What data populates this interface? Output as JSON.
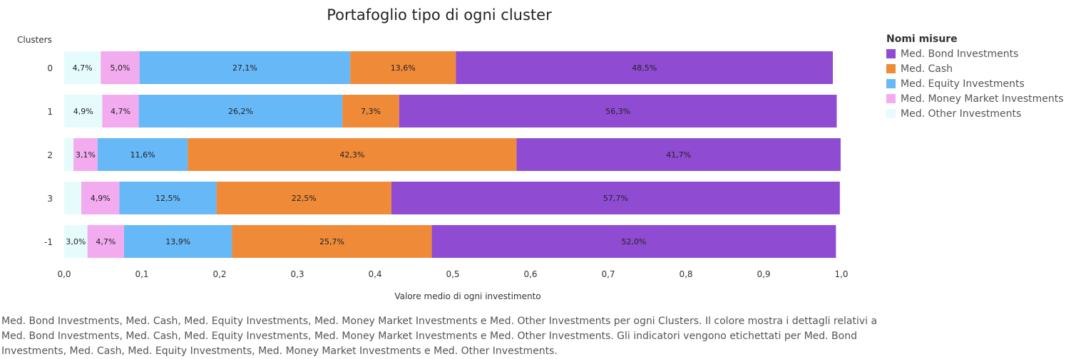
{
  "chart_data": {
    "type": "bar",
    "orientation": "horizontal",
    "stacked": true,
    "title": "Portafoglio tipo di ogni cluster",
    "ylabel": "Clusters",
    "xlabel": "Valore medio di ogni investimento",
    "categories": [
      "0",
      "1",
      "2",
      "3",
      "-1"
    ],
    "xlim": [
      0,
      1.0
    ],
    "xticks": [
      "0,0",
      "0,1",
      "0,2",
      "0,3",
      "0,4",
      "0,5",
      "0,6",
      "0,7",
      "0,8",
      "0,9",
      "1,0"
    ],
    "grid": false,
    "legend_position": "right",
    "legend_title": "Nomi misure",
    "series": [
      {
        "name": "Med. Other Investments",
        "color": "#e6fcfc",
        "values": [
          0.047,
          0.049,
          0.012,
          0.022,
          0.03
        ],
        "labels": [
          "4,7%",
          "4,9%",
          "",
          "",
          "3,0%"
        ]
      },
      {
        "name": "Med. Money Market Investments",
        "color": "#f3abf0",
        "values": [
          0.05,
          0.047,
          0.031,
          0.049,
          0.047
        ],
        "labels": [
          "5,0%",
          "4,7%",
          "3,1%",
          "4,9%",
          "4,7%"
        ]
      },
      {
        "name": "Med. Equity Investments",
        "color": "#67b8f7",
        "values": [
          0.271,
          0.262,
          0.116,
          0.125,
          0.139
        ],
        "labels": [
          "27,1%",
          "26,2%",
          "11,6%",
          "12,5%",
          "13,9%"
        ]
      },
      {
        "name": "Med. Cash",
        "color": "#ee8a38",
        "values": [
          0.136,
          0.073,
          0.423,
          0.225,
          0.257
        ],
        "labels": [
          "13,6%",
          "7,3%",
          "42,3%",
          "22,5%",
          "25,7%"
        ]
      },
      {
        "name": "Med. Bond Investments",
        "color": "#8f4bd2",
        "values": [
          0.485,
          0.563,
          0.417,
          0.577,
          0.52
        ],
        "labels": [
          "48,5%",
          "56,3%",
          "41,7%",
          "57,7%",
          "52,0%"
        ]
      }
    ],
    "legend_order": [
      "Med. Bond Investments",
      "Med. Cash",
      "Med. Equity Investments",
      "Med. Money Market Investments",
      "Med. Other Investments"
    ]
  },
  "caption": "Med. Bond Investments, Med. Cash, Med. Equity Investments, Med. Money Market Investments e Med. Other Investments per ogni Clusters.  Il colore mostra i dettagli relativi a Med. Bond Investments, Med. Cash, Med. Equity Investments, Med. Money Market Investments e Med. Other Investments.  Gli indicatori vengono etichettati per Med. Bond Investments, Med. Cash, Med. Equity Investments, Med. Money Market Investments e Med. Other Investments."
}
